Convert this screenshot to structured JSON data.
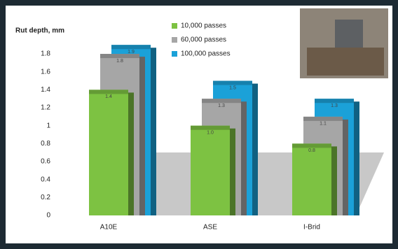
{
  "chart_data": {
    "type": "bar3d",
    "y_label": "Rut depth, mm",
    "categories": [
      "A10E",
      "ASE",
      "I-Brid"
    ],
    "series": [
      {
        "name": "10,000 passes",
        "color": "#7dc242",
        "values": [
          1.4,
          1.0,
          0.8
        ],
        "value_labels": [
          "1.4",
          "1.0",
          "0.8"
        ]
      },
      {
        "name": "60,000 passes",
        "color": "#a6a6a6",
        "values": [
          1.8,
          1.3,
          1.1
        ],
        "value_labels": [
          "1.8",
          "1.3",
          "1.1"
        ]
      },
      {
        "name": "100,000 passes",
        "color": "#1ba1d8",
        "values": [
          1.9,
          1.5,
          1.3
        ],
        "value_labels": [
          "1.9",
          "1.5",
          "1.3"
        ]
      }
    ],
    "ylim": [
      0,
      2
    ],
    "yticks": [
      0,
      0.2,
      0.4,
      0.6,
      0.8,
      1,
      1.2,
      1.4,
      1.6,
      1.8
    ]
  }
}
